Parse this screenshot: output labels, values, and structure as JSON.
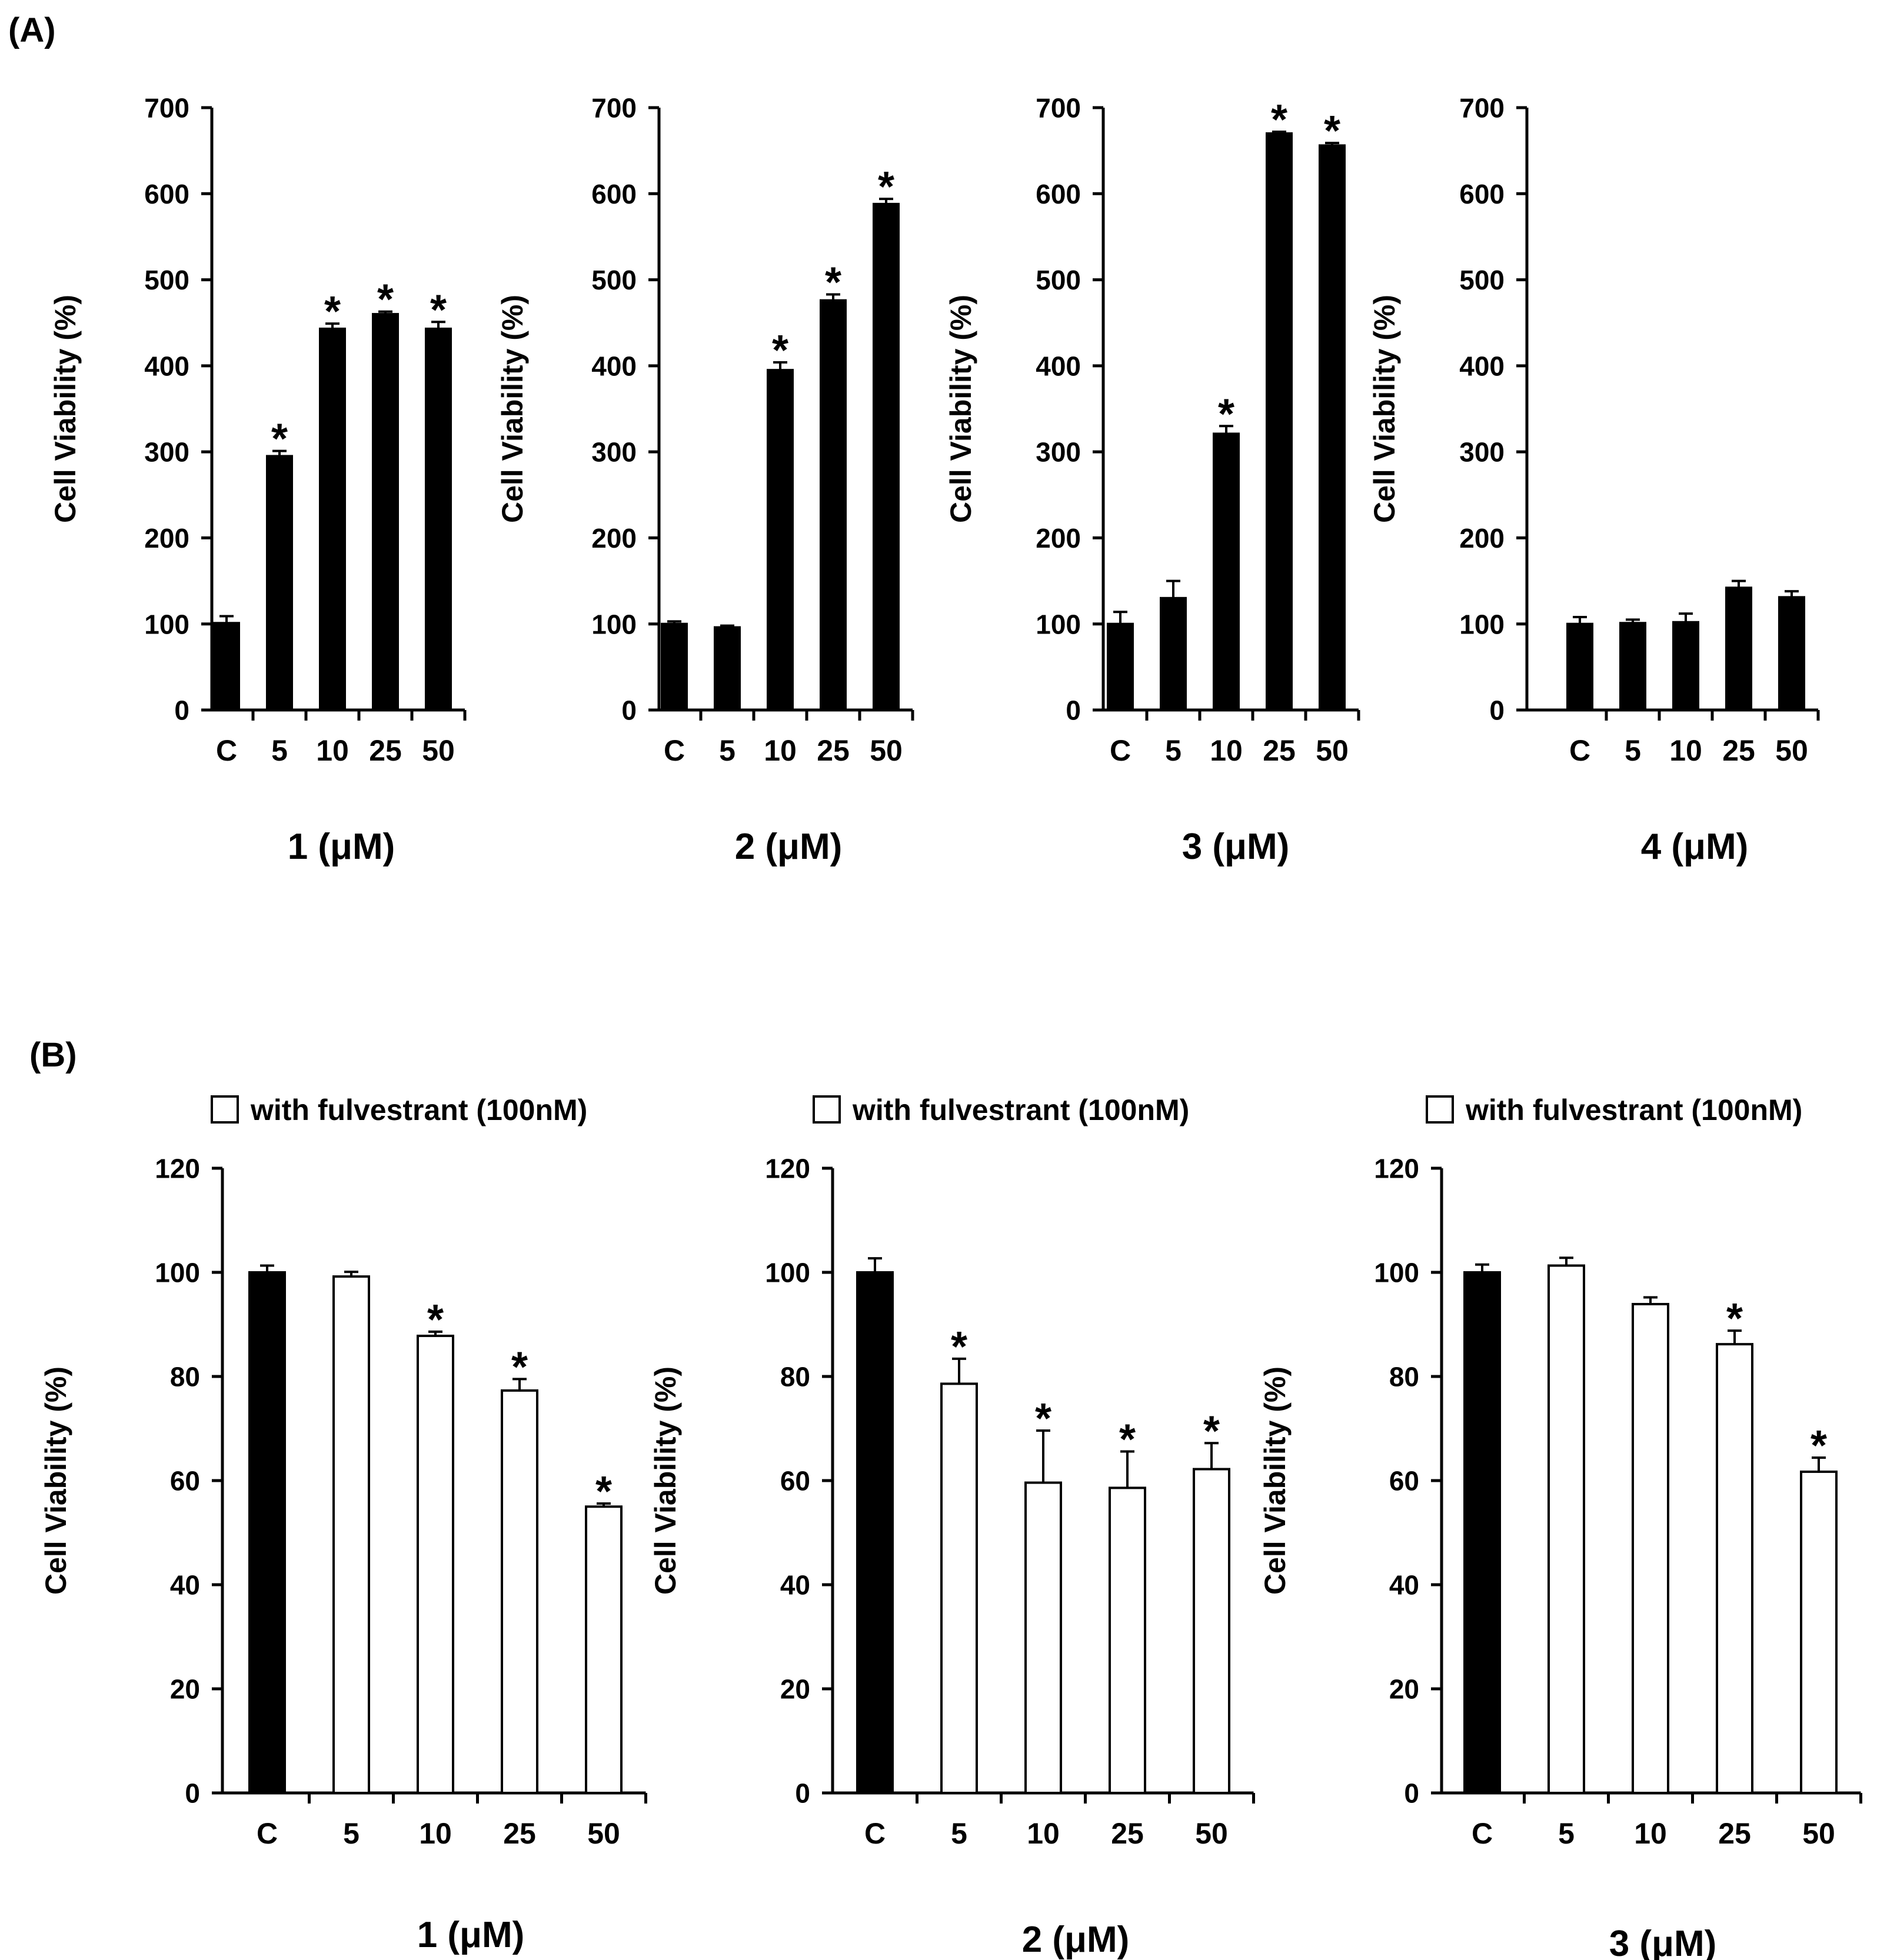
{
  "panel_labels": {
    "a": "(A)",
    "b": "(B)"
  },
  "colors": {
    "solid_bar": "#000000",
    "open_bar": "#ffffff",
    "axis": "#000000"
  },
  "chart_data": [
    {
      "id": "a1",
      "panel": "A",
      "type": "bar",
      "categories": [
        "C",
        "5",
        "10",
        "25",
        "50"
      ],
      "values": [
        101,
        295,
        443,
        460,
        443
      ],
      "errors": [
        8,
        6,
        6,
        3,
        8
      ],
      "significant": [
        false,
        true,
        true,
        true,
        true
      ],
      "fill": [
        "solid",
        "solid",
        "solid",
        "solid",
        "solid"
      ],
      "ylabel": "Cell Viability (%)",
      "xlabel": "1 (μM)",
      "ylim": [
        0,
        700
      ],
      "yticks": [
        0,
        100,
        200,
        300,
        400,
        500,
        600,
        700
      ],
      "legend": null
    },
    {
      "id": "a2",
      "panel": "A",
      "type": "bar",
      "categories": [
        "C",
        "5",
        "10",
        "25",
        "50"
      ],
      "values": [
        100,
        96,
        395,
        476,
        588
      ],
      "errors": [
        3,
        2,
        9,
        7,
        6
      ],
      "significant": [
        false,
        false,
        true,
        true,
        true
      ],
      "fill": [
        "solid",
        "solid",
        "solid",
        "solid",
        "solid"
      ],
      "ylabel": "Cell Viability (%)",
      "xlabel": "2 (μM)",
      "ylim": [
        0,
        700
      ],
      "yticks": [
        0,
        100,
        200,
        300,
        400,
        500,
        600,
        700
      ],
      "legend": null
    },
    {
      "id": "a3",
      "panel": "A",
      "type": "bar",
      "categories": [
        "C",
        "5",
        "10",
        "25",
        "50"
      ],
      "values": [
        100,
        130,
        321,
        670,
        656
      ],
      "errors": [
        14,
        20,
        9,
        2,
        3
      ],
      "significant": [
        false,
        false,
        true,
        true,
        true
      ],
      "fill": [
        "solid",
        "solid",
        "solid",
        "solid",
        "solid"
      ],
      "ylabel": "Cell Viability (%)",
      "xlabel": "3 (μM)",
      "ylim": [
        0,
        700
      ],
      "yticks": [
        0,
        100,
        200,
        300,
        400,
        500,
        600,
        700
      ],
      "legend": null
    },
    {
      "id": "a4",
      "panel": "A",
      "type": "bar",
      "categories": [
        "C",
        "5",
        "10",
        "25",
        "50"
      ],
      "values": [
        100,
        101,
        102,
        142,
        131
      ],
      "errors": [
        8,
        4,
        10,
        8,
        7
      ],
      "significant": [
        false,
        false,
        false,
        false,
        false
      ],
      "fill": [
        "solid",
        "solid",
        "solid",
        "solid",
        "solid"
      ],
      "ylabel": "Cell Viability (%)",
      "xlabel": "4 (μM)",
      "ylim": [
        0,
        700
      ],
      "yticks": [
        0,
        100,
        200,
        300,
        400,
        500,
        600,
        700
      ],
      "legend": null
    },
    {
      "id": "b1",
      "panel": "B",
      "type": "bar",
      "categories": [
        "C",
        "5",
        "10",
        "25",
        "50"
      ],
      "values": [
        100,
        99.2,
        87.8,
        77.3,
        55
      ],
      "errors": [
        1.3,
        0.9,
        0.8,
        2.2,
        0.6
      ],
      "significant": [
        false,
        false,
        true,
        true,
        true
      ],
      "fill": [
        "solid",
        "open",
        "open",
        "open",
        "open"
      ],
      "ylabel": "Cell Viability (%)",
      "xlabel": "1 (μM)",
      "ylim": [
        0,
        120
      ],
      "yticks": [
        0,
        20,
        40,
        60,
        80,
        100,
        120
      ],
      "legend": "with fulvestrant (100nM)"
    },
    {
      "id": "b2",
      "panel": "B",
      "type": "bar",
      "categories": [
        "C",
        "5",
        "10",
        "25",
        "50"
      ],
      "values": [
        100,
        78.6,
        59.6,
        58.6,
        62.2
      ],
      "errors": [
        2.7,
        4.8,
        10,
        7,
        5
      ],
      "significant": [
        false,
        true,
        true,
        true,
        true
      ],
      "fill": [
        "solid",
        "open",
        "open",
        "open",
        "open"
      ],
      "ylabel": "Cell Viability (%)",
      "xlabel": "2 (μM)",
      "ylim": [
        0,
        120
      ],
      "yticks": [
        0,
        20,
        40,
        60,
        80,
        100,
        120
      ],
      "legend": "with fulvestrant (100nM)"
    },
    {
      "id": "b3",
      "panel": "B",
      "type": "bar",
      "categories": [
        "C",
        "5",
        "10",
        "25",
        "50"
      ],
      "values": [
        100,
        101.3,
        93.9,
        86.2,
        61.7
      ],
      "errors": [
        1.5,
        1.5,
        1.3,
        2.6,
        2.7
      ],
      "significant": [
        false,
        false,
        false,
        true,
        true
      ],
      "fill": [
        "solid",
        "open",
        "open",
        "open",
        "open"
      ],
      "ylabel": "Cell Viability (%)",
      "xlabel": "3 (μM)",
      "ylim": [
        0,
        120
      ],
      "yticks": [
        0,
        20,
        40,
        60,
        80,
        100,
        120
      ],
      "legend": "with fulvestrant (100nM)"
    }
  ]
}
